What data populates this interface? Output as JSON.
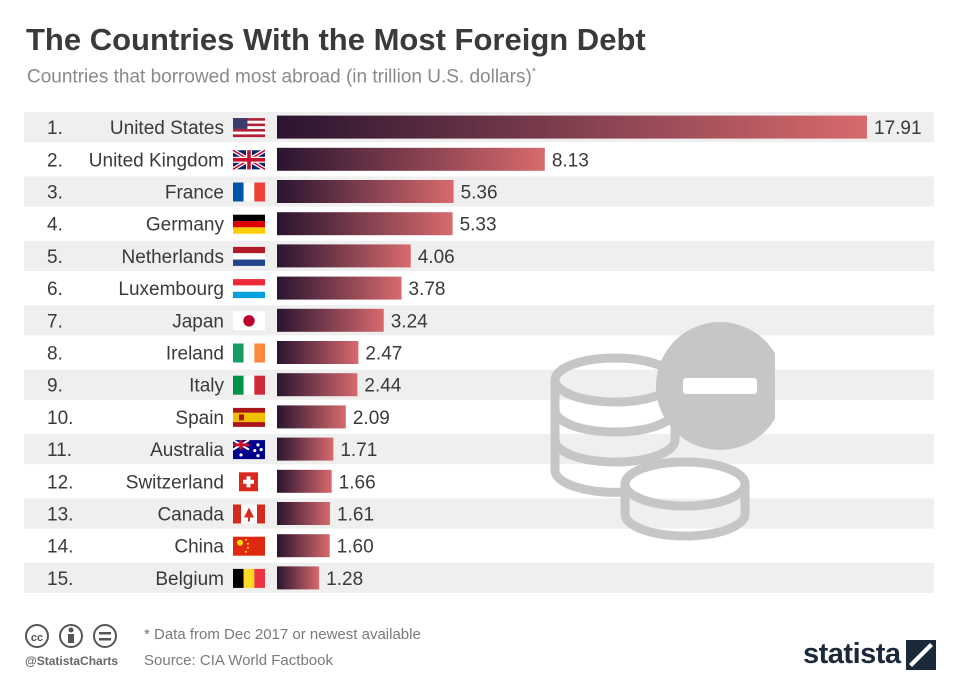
{
  "title": "The Countries With the Most Foreign Debt",
  "subtitle": "Countries that borrowed most abroad (in trillion U.S. dollars)",
  "subtitle_marker": "*",
  "chart_data": {
    "type": "bar",
    "orientation": "horizontal",
    "title": "The Countries With the Most Foreign Debt",
    "unit": "trillion U.S. dollars",
    "ranks": [
      "1.",
      "2.",
      "3.",
      "4.",
      "5.",
      "6.",
      "7.",
      "8.",
      "9.",
      "10.",
      "11.",
      "12.",
      "13.",
      "14.",
      "15."
    ],
    "categories": [
      "United States",
      "United Kingdom",
      "France",
      "Germany",
      "Netherlands",
      "Luxembourg",
      "Japan",
      "Ireland",
      "Italy",
      "Spain",
      "Australia",
      "Switzerland",
      "Canada",
      "China",
      "Belgium"
    ],
    "values": [
      17.91,
      8.13,
      5.36,
      5.33,
      4.06,
      3.78,
      3.24,
      2.47,
      2.44,
      2.09,
      1.71,
      1.66,
      1.61,
      1.6,
      1.28
    ],
    "value_labels": [
      "17.91",
      "8.13",
      "5.36",
      "5.33",
      "4.06",
      "3.78",
      "3.24",
      "2.47",
      "2.44",
      "2.09",
      "1.71",
      "1.66",
      "1.61",
      "1.60",
      "1.28"
    ],
    "flags": [
      "us-flag-icon",
      "uk-flag-icon",
      "france-flag-icon",
      "germany-flag-icon",
      "netherlands-flag-icon",
      "luxembourg-flag-icon",
      "japan-flag-icon",
      "ireland-flag-icon",
      "italy-flag-icon",
      "spain-flag-icon",
      "australia-flag-icon",
      "switzerland-flag-icon",
      "canada-flag-icon",
      "china-flag-icon",
      "belgium-flag-icon"
    ],
    "xlim": [
      0,
      17.91
    ],
    "grid": false
  },
  "colors": {
    "bar_start": "#2a1430",
    "bar_end": "#d86a6d",
    "row_band": "#efefef",
    "coin_icon": "#c6c6c6"
  },
  "footer": {
    "note": "* Data from Dec 2017 or newest available",
    "source": "Source: CIA World Factbook",
    "handle": "@StatistaCharts",
    "brand": "statista"
  }
}
